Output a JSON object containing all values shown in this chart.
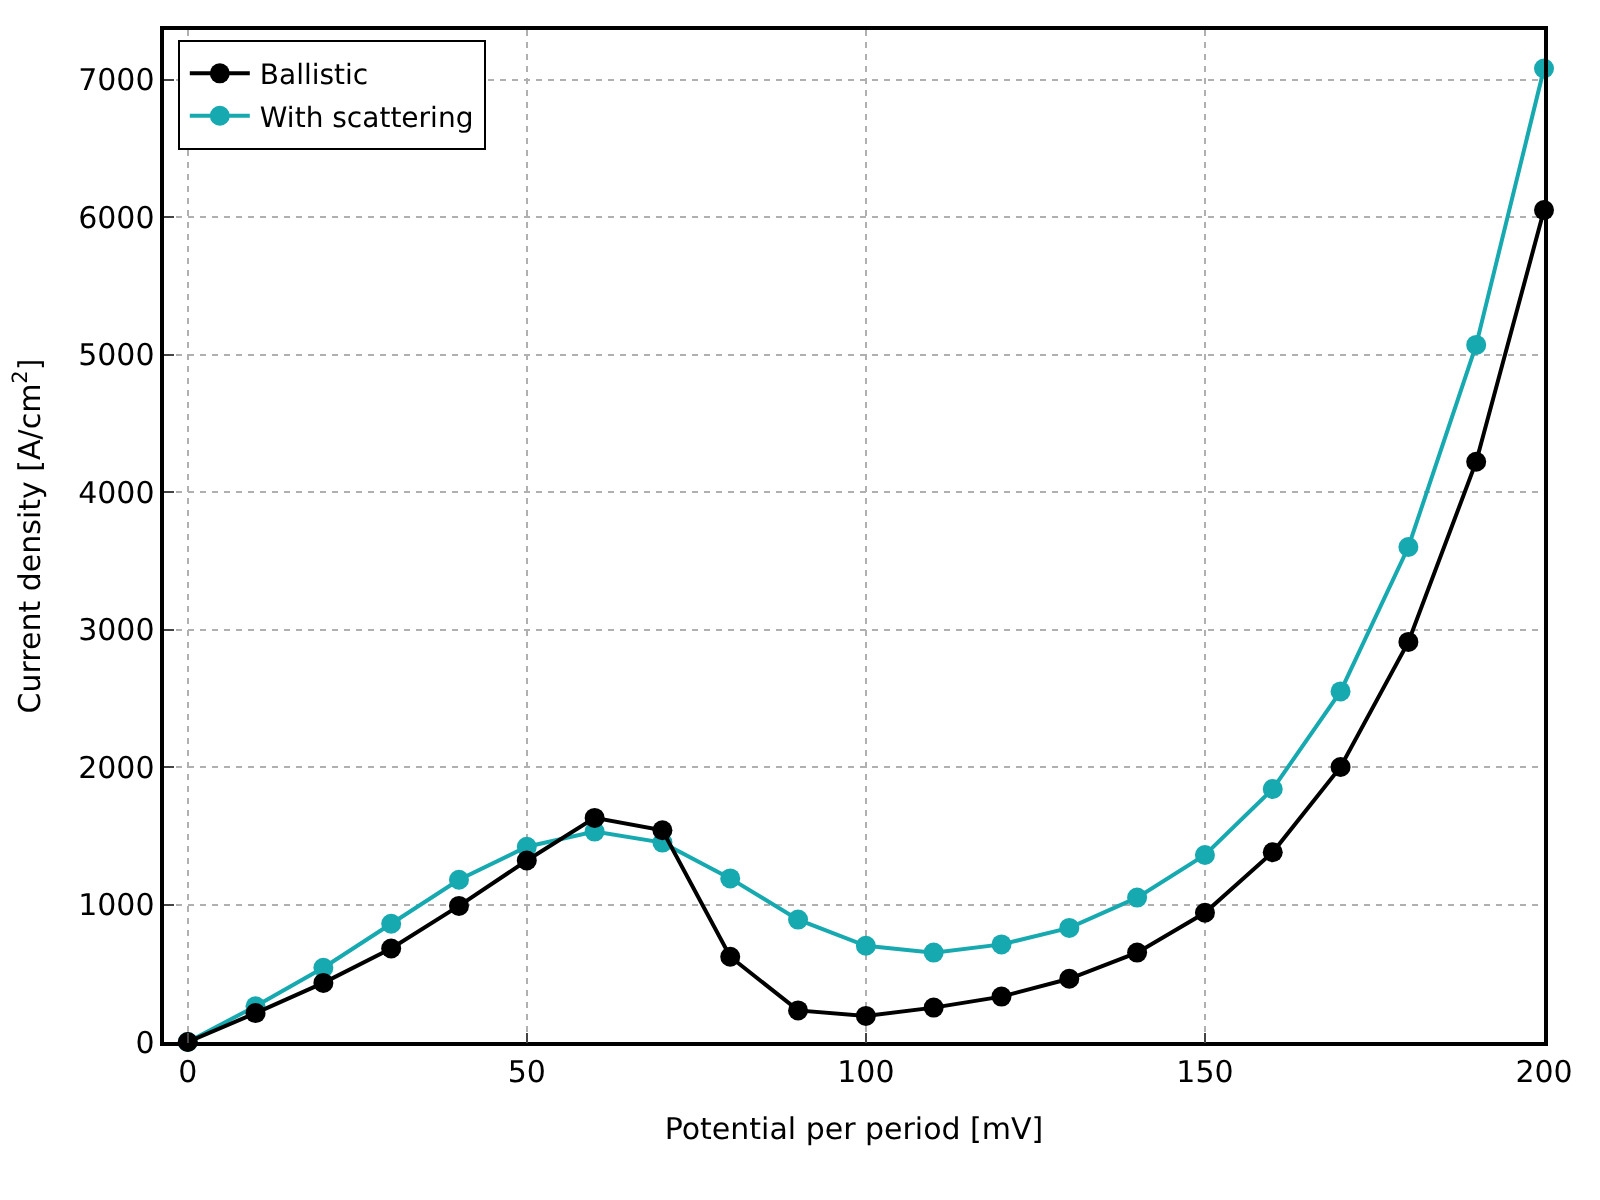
{
  "chart_data": {
    "type": "line",
    "xlabel": "Potential per period [mV]",
    "ylabel": "Current density [A/cm$^{2}$]",
    "x": [
      0,
      10,
      20,
      30,
      40,
      50,
      60,
      70,
      80,
      90,
      100,
      110,
      120,
      130,
      140,
      150,
      160,
      170,
      180,
      190,
      200
    ],
    "series": [
      {
        "name": "Ballistic",
        "color": "#000000",
        "values": [
          0,
          210,
          430,
          680,
          990,
          1320,
          1630,
          1540,
          620,
          230,
          190,
          250,
          330,
          460,
          650,
          940,
          1380,
          2000,
          2910,
          4220,
          6050
        ]
      },
      {
        "name": "With scattering",
        "color": "#17a9b0",
        "values": [
          0,
          260,
          540,
          860,
          1180,
          1420,
          1530,
          1450,
          1190,
          890,
          700,
          650,
          710,
          830,
          1050,
          1360,
          1840,
          2550,
          3600,
          5070,
          7080
        ]
      }
    ],
    "xlim": [
      -3.5,
      200
    ],
    "xticks": [
      0,
      50,
      100,
      150,
      200
    ],
    "ylim": [
      0,
      7360
    ],
    "yticks": [
      0,
      1000,
      2000,
      3000,
      4000,
      5000,
      6000,
      7000
    ],
    "grid": true,
    "legend": "top left",
    "marker": "circle",
    "line_style": "solid"
  }
}
